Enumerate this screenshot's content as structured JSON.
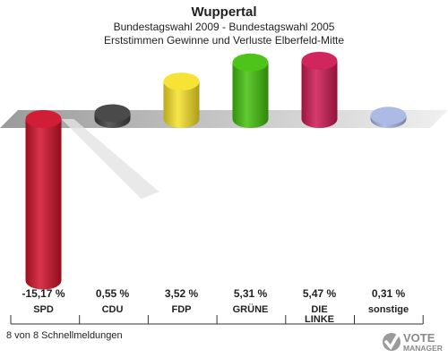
{
  "header": {
    "title": "Wuppertal",
    "subtitle": "Bundestagswahl 2009 - Bundestagswahl 2005",
    "subtitle2": "Erststimmen Gewinne und Verluste Elberfeld-Mitte"
  },
  "footer": {
    "status": "8 von 8 Schnellmeldungen",
    "logo_line1": "VOTE",
    "logo_line2": "MANAGER"
  },
  "chart_data": {
    "type": "bar",
    "categories": [
      "SPD",
      "CDU",
      "FDP",
      "GRÜNE",
      "DIE LINKE",
      "sonstige"
    ],
    "category_lines": [
      [
        "SPD"
      ],
      [
        "CDU"
      ],
      [
        "FDP"
      ],
      [
        "GRÜNE"
      ],
      [
        "DIE",
        "LINKE"
      ],
      [
        "sonstige"
      ]
    ],
    "values": [
      -15.17,
      0.55,
      3.52,
      5.31,
      5.47,
      0.31
    ],
    "value_labels": [
      "-15,17 %",
      "0,55 %",
      "3,52 %",
      "5,31 %",
      "5,47 %",
      "0,31 %"
    ],
    "colors": [
      "#d0112b",
      "#404040",
      "#f6e12a",
      "#44c10e",
      "#cf1a55",
      "#a8b6e4"
    ],
    "title": "",
    "xlabel": "",
    "ylabel": ""
  }
}
